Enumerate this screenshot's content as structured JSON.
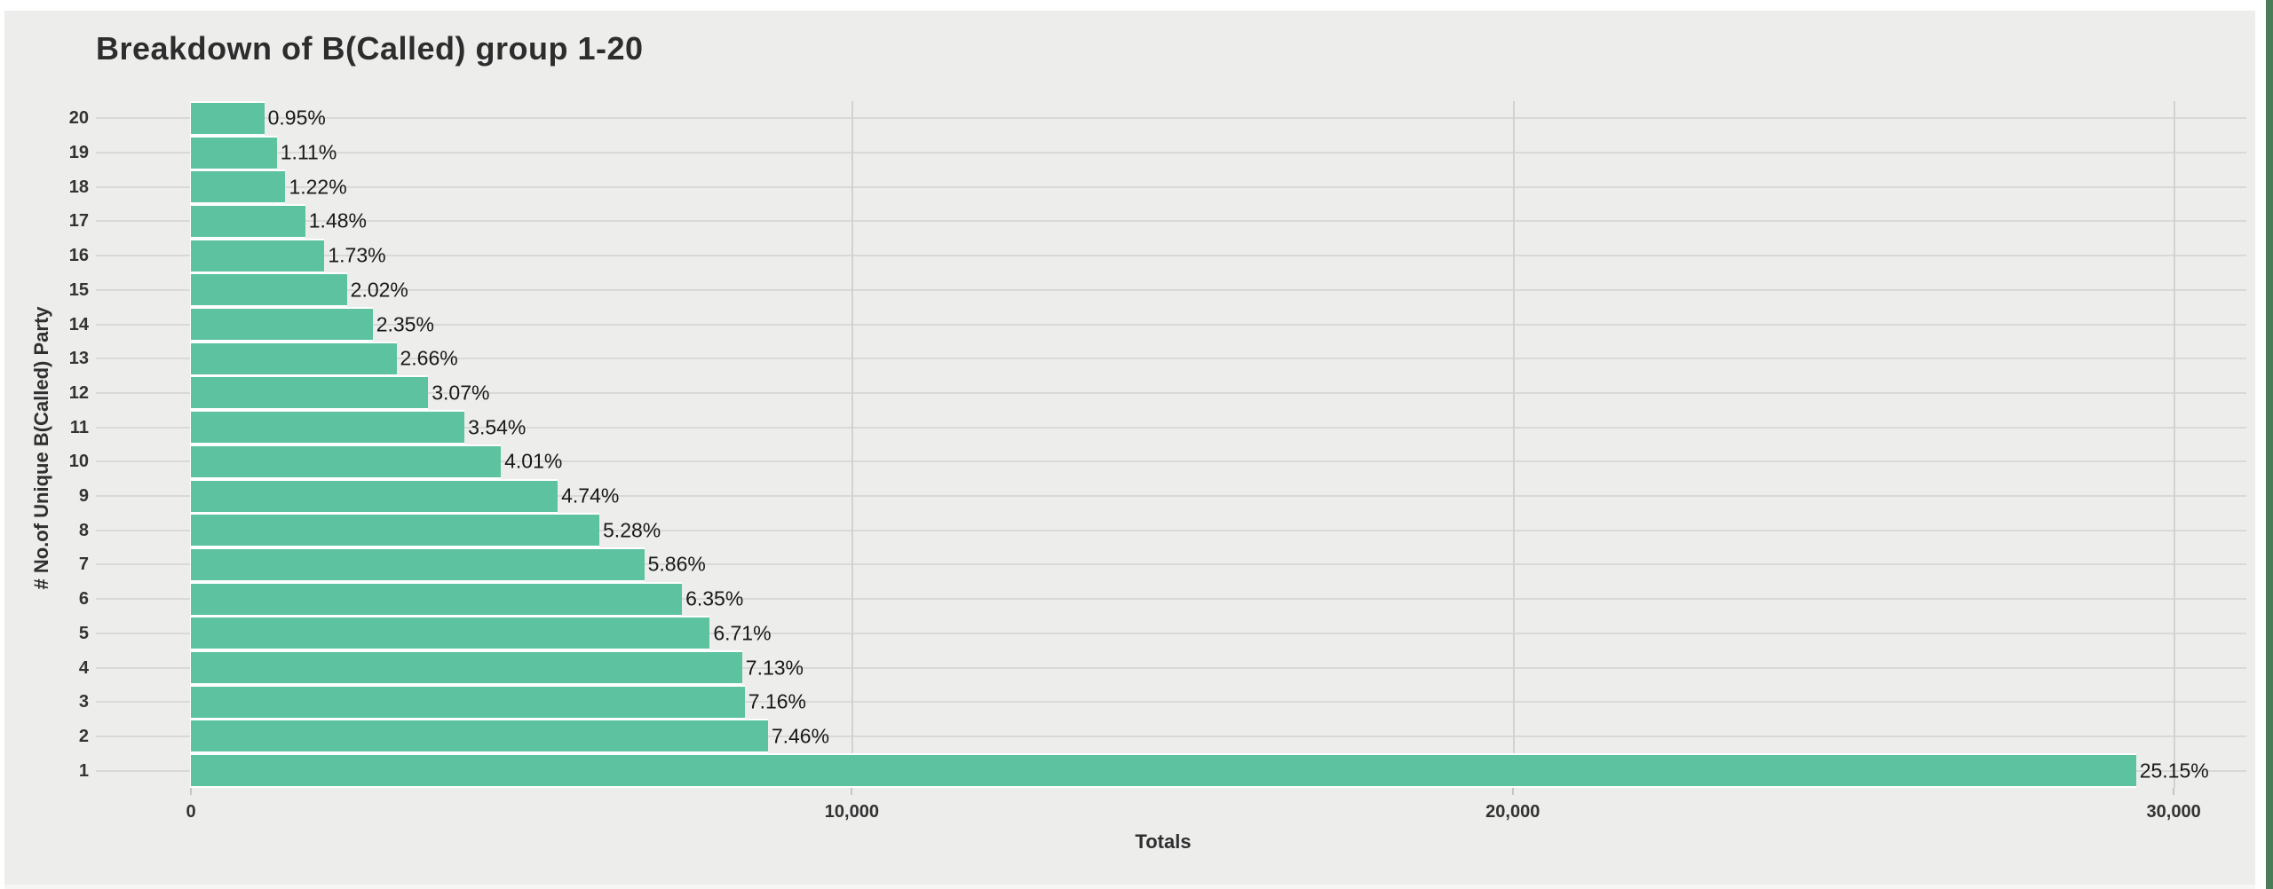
{
  "page": {
    "background": "#ffffff",
    "panel_background": "#edeeec",
    "window_edge_color": "#4b7b57"
  },
  "chart": {
    "title": "Breakdown of B(Called) group 1-20",
    "x_axis_title": "Totals",
    "y_axis_title": "# No.of Unique B(Called) Party",
    "bar_color": "#5cc2a0",
    "gridline_color": "#d9dad8",
    "zero_line_color": "#ffffff",
    "text_color": "#333333"
  },
  "chart_data": {
    "type": "bar",
    "orientation": "horizontal",
    "title": "Breakdown of B(Called) group 1-20",
    "xlabel": "Totals",
    "ylabel": "# No.of Unique B(Called) Party",
    "categories": [
      20,
      19,
      18,
      17,
      16,
      15,
      14,
      13,
      12,
      11,
      10,
      9,
      8,
      7,
      6,
      5,
      4,
      3,
      2,
      1
    ],
    "percent_labels": [
      "0.95%",
      "1.11%",
      "1.22%",
      "1.48%",
      "1.73%",
      "2.02%",
      "2.35%",
      "2.66%",
      "3.07%",
      "3.54%",
      "4.01%",
      "4.74%",
      "5.28%",
      "5.86%",
      "6.35%",
      "6.71%",
      "7.13%",
      "7.16%",
      "7.46%",
      "25.15%"
    ],
    "percents": [
      0.95,
      1.11,
      1.22,
      1.48,
      1.73,
      2.02,
      2.35,
      2.66,
      3.07,
      3.54,
      4.01,
      4.74,
      5.28,
      5.86,
      6.35,
      6.71,
      7.13,
      7.16,
      7.46,
      25.15
    ],
    "values_estimated_totals": [
      1110,
      1300,
      1430,
      1730,
      2020,
      2360,
      2750,
      3110,
      3590,
      4140,
      4690,
      5550,
      6180,
      6860,
      7430,
      7850,
      8340,
      8380,
      8730,
      29430
    ],
    "xlim": [
      0,
      31100
    ],
    "x_ticks": {
      "values": [
        0,
        10000,
        20000,
        30000
      ],
      "labels": [
        "0",
        "10,000",
        "20,000",
        "30,000"
      ]
    },
    "grid": true,
    "legend": "none",
    "value_label_position": "outside-right"
  }
}
